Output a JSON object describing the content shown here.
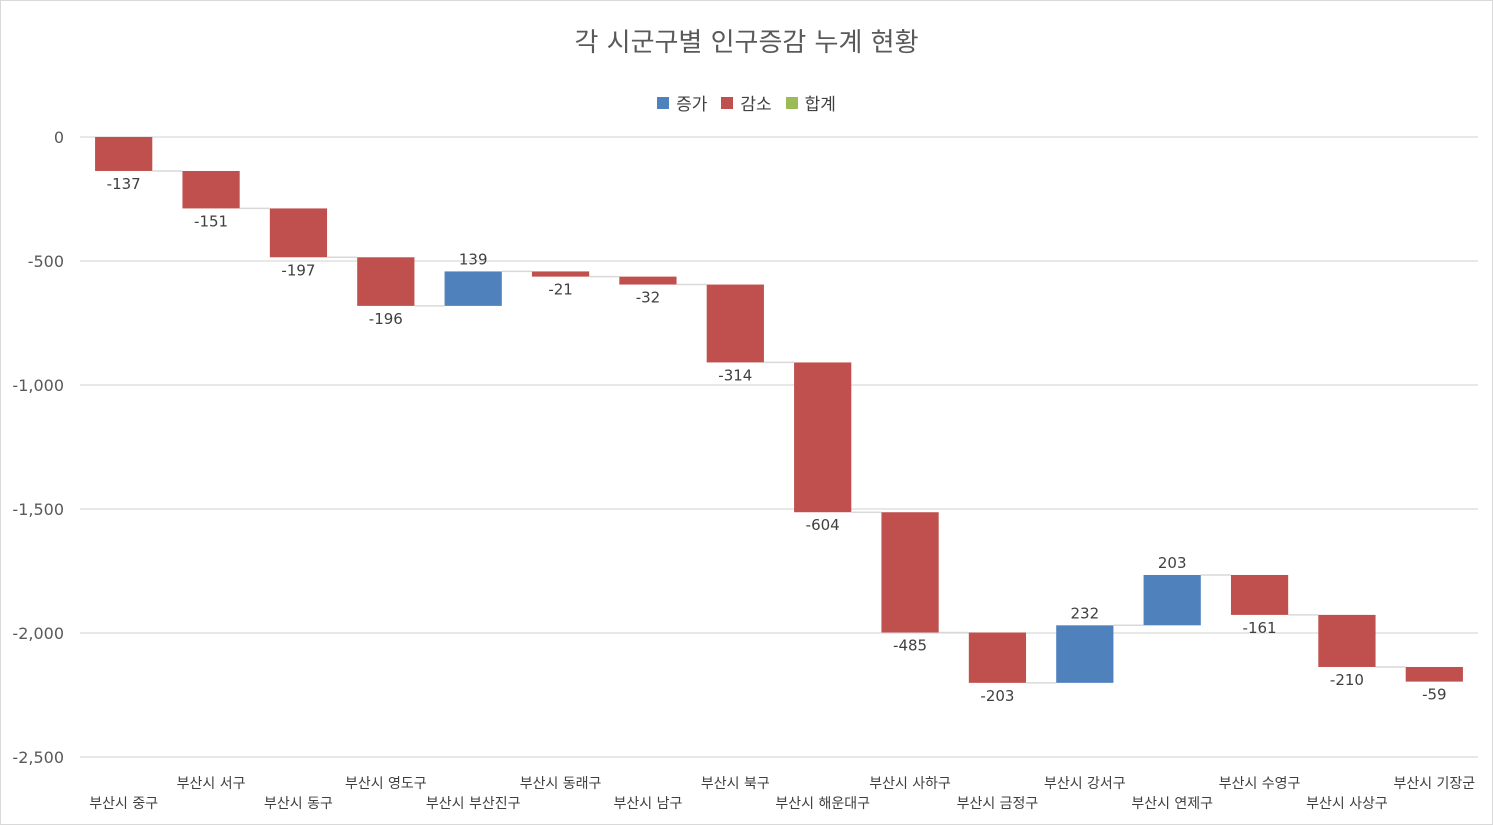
{
  "chart_data": {
    "type": "waterfall",
    "title": "각 시군구별 인구증감 누계 현황",
    "legend": [
      {
        "label": "증가",
        "color": "#4f81bd"
      },
      {
        "label": "감소",
        "color": "#c0504d"
      },
      {
        "label": "합계",
        "color": "#9bbb59"
      }
    ],
    "legend_position": "top",
    "categories": [
      "부산시 중구",
      "부산시 서구",
      "부산시 동구",
      "부산시 영도구",
      "부산시 부산진구",
      "부산시 동래구",
      "부산시 남구",
      "부산시 북구",
      "부산시 해운대구",
      "부산시 사하구",
      "부산시 금정구",
      "부산시 강서구",
      "부산시 연제구",
      "부산시 수영구",
      "부산시 사상구",
      "부산시 기장군"
    ],
    "values": [
      -137,
      -151,
      -197,
      -196,
      139,
      -21,
      -32,
      -314,
      -604,
      -485,
      -203,
      232,
      203,
      -161,
      -210,
      -59
    ],
    "value_labels": [
      "-137",
      "-151",
      "-197",
      "-196",
      "139",
      "-21",
      "-32",
      "-314",
      "-604",
      "-485",
      "-203",
      "232",
      "203",
      "-161",
      "-210",
      "-59"
    ],
    "ylim": [
      -2500,
      0
    ],
    "yticks": [
      0,
      -500,
      -1000,
      -1500,
      -2000,
      -2500
    ],
    "ytick_labels": [
      "0",
      "-500",
      "-1,000",
      "-1,500",
      "-2,000",
      "-2,500"
    ],
    "grid": true
  }
}
